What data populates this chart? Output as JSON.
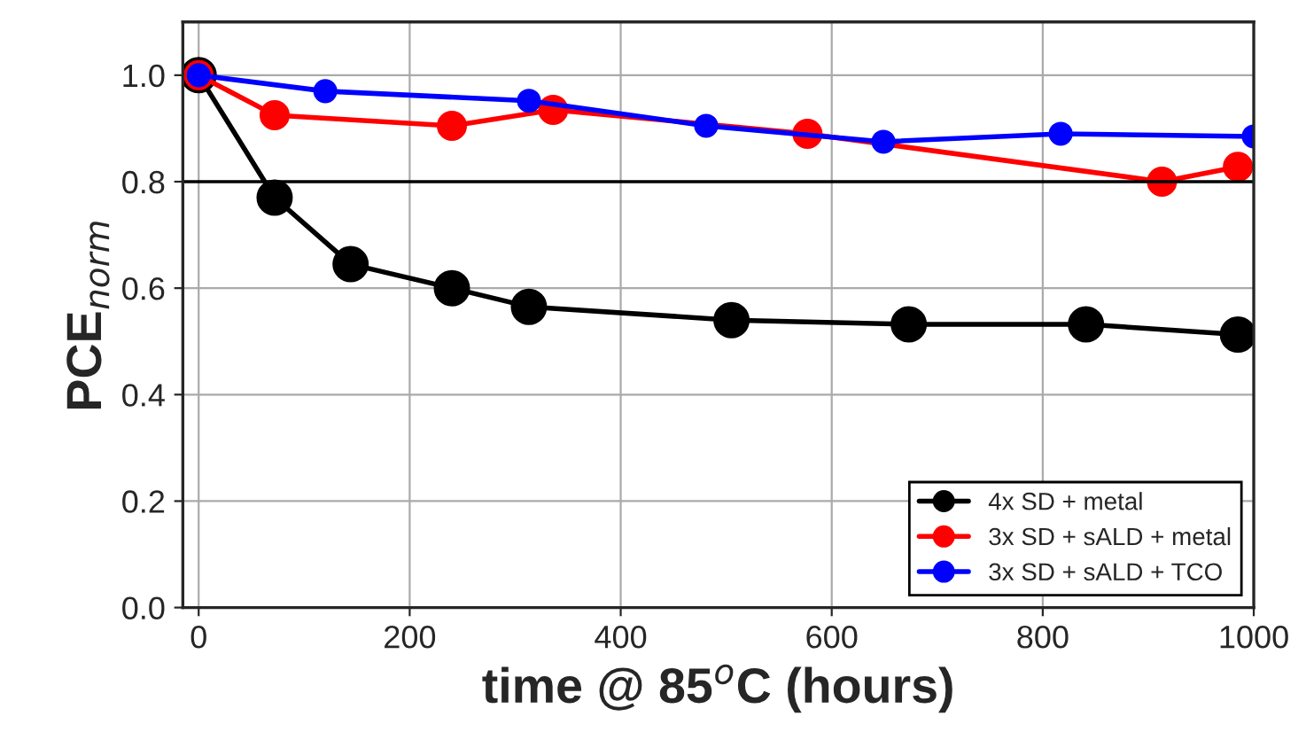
{
  "chart_data": {
    "type": "line",
    "xlabel": "time @ 85$^{o}$C (hours)",
    "ylabel": "PCE$_{norm}$",
    "xlim": [
      -15,
      1000
    ],
    "ylim": [
      0,
      1.1
    ],
    "xticks": [
      0,
      200,
      400,
      600,
      800,
      1000
    ],
    "yticks": [
      {
        "value": 0,
        "label": "0.0"
      },
      {
        "value": 0.2,
        "label": "0.2"
      },
      {
        "value": 0.4,
        "label": "0.4"
      },
      {
        "value": 0.6,
        "label": "0.6"
      },
      {
        "value": 0.8,
        "label": "0.8"
      },
      {
        "value": 1.0,
        "label": "1.0"
      }
    ],
    "grid": true,
    "legend": "bottom right",
    "marker": "circle",
    "line_style": "solid",
    "ref_lines": [
      {
        "axis": "y",
        "value": 0.8,
        "color": "#000000"
      }
    ],
    "series": [
      {
        "name": "4x SD + metal",
        "color": "#000000",
        "x": [
          0,
          72,
          144,
          240,
          313,
          505,
          673,
          841,
          985
        ],
        "values": [
          1.0,
          0.77,
          0.645,
          0.6,
          0.565,
          0.54,
          0.532,
          0.532,
          0.513
        ]
      },
      {
        "name": "3x SD + sALD + metal",
        "color": "#ff0000",
        "x": [
          0,
          72,
          240,
          336,
          577,
          913,
          985
        ],
        "values": [
          1.0,
          0.925,
          0.905,
          0.935,
          0.89,
          0.8,
          0.828
        ]
      },
      {
        "name": "3x SD + sALD + TCO",
        "color": "#0000ff",
        "x": [
          0,
          120,
          313,
          481,
          649,
          817,
          1000
        ],
        "values": [
          1.0,
          0.97,
          0.952,
          0.905,
          0.875,
          0.89,
          0.885
        ]
      }
    ]
  }
}
